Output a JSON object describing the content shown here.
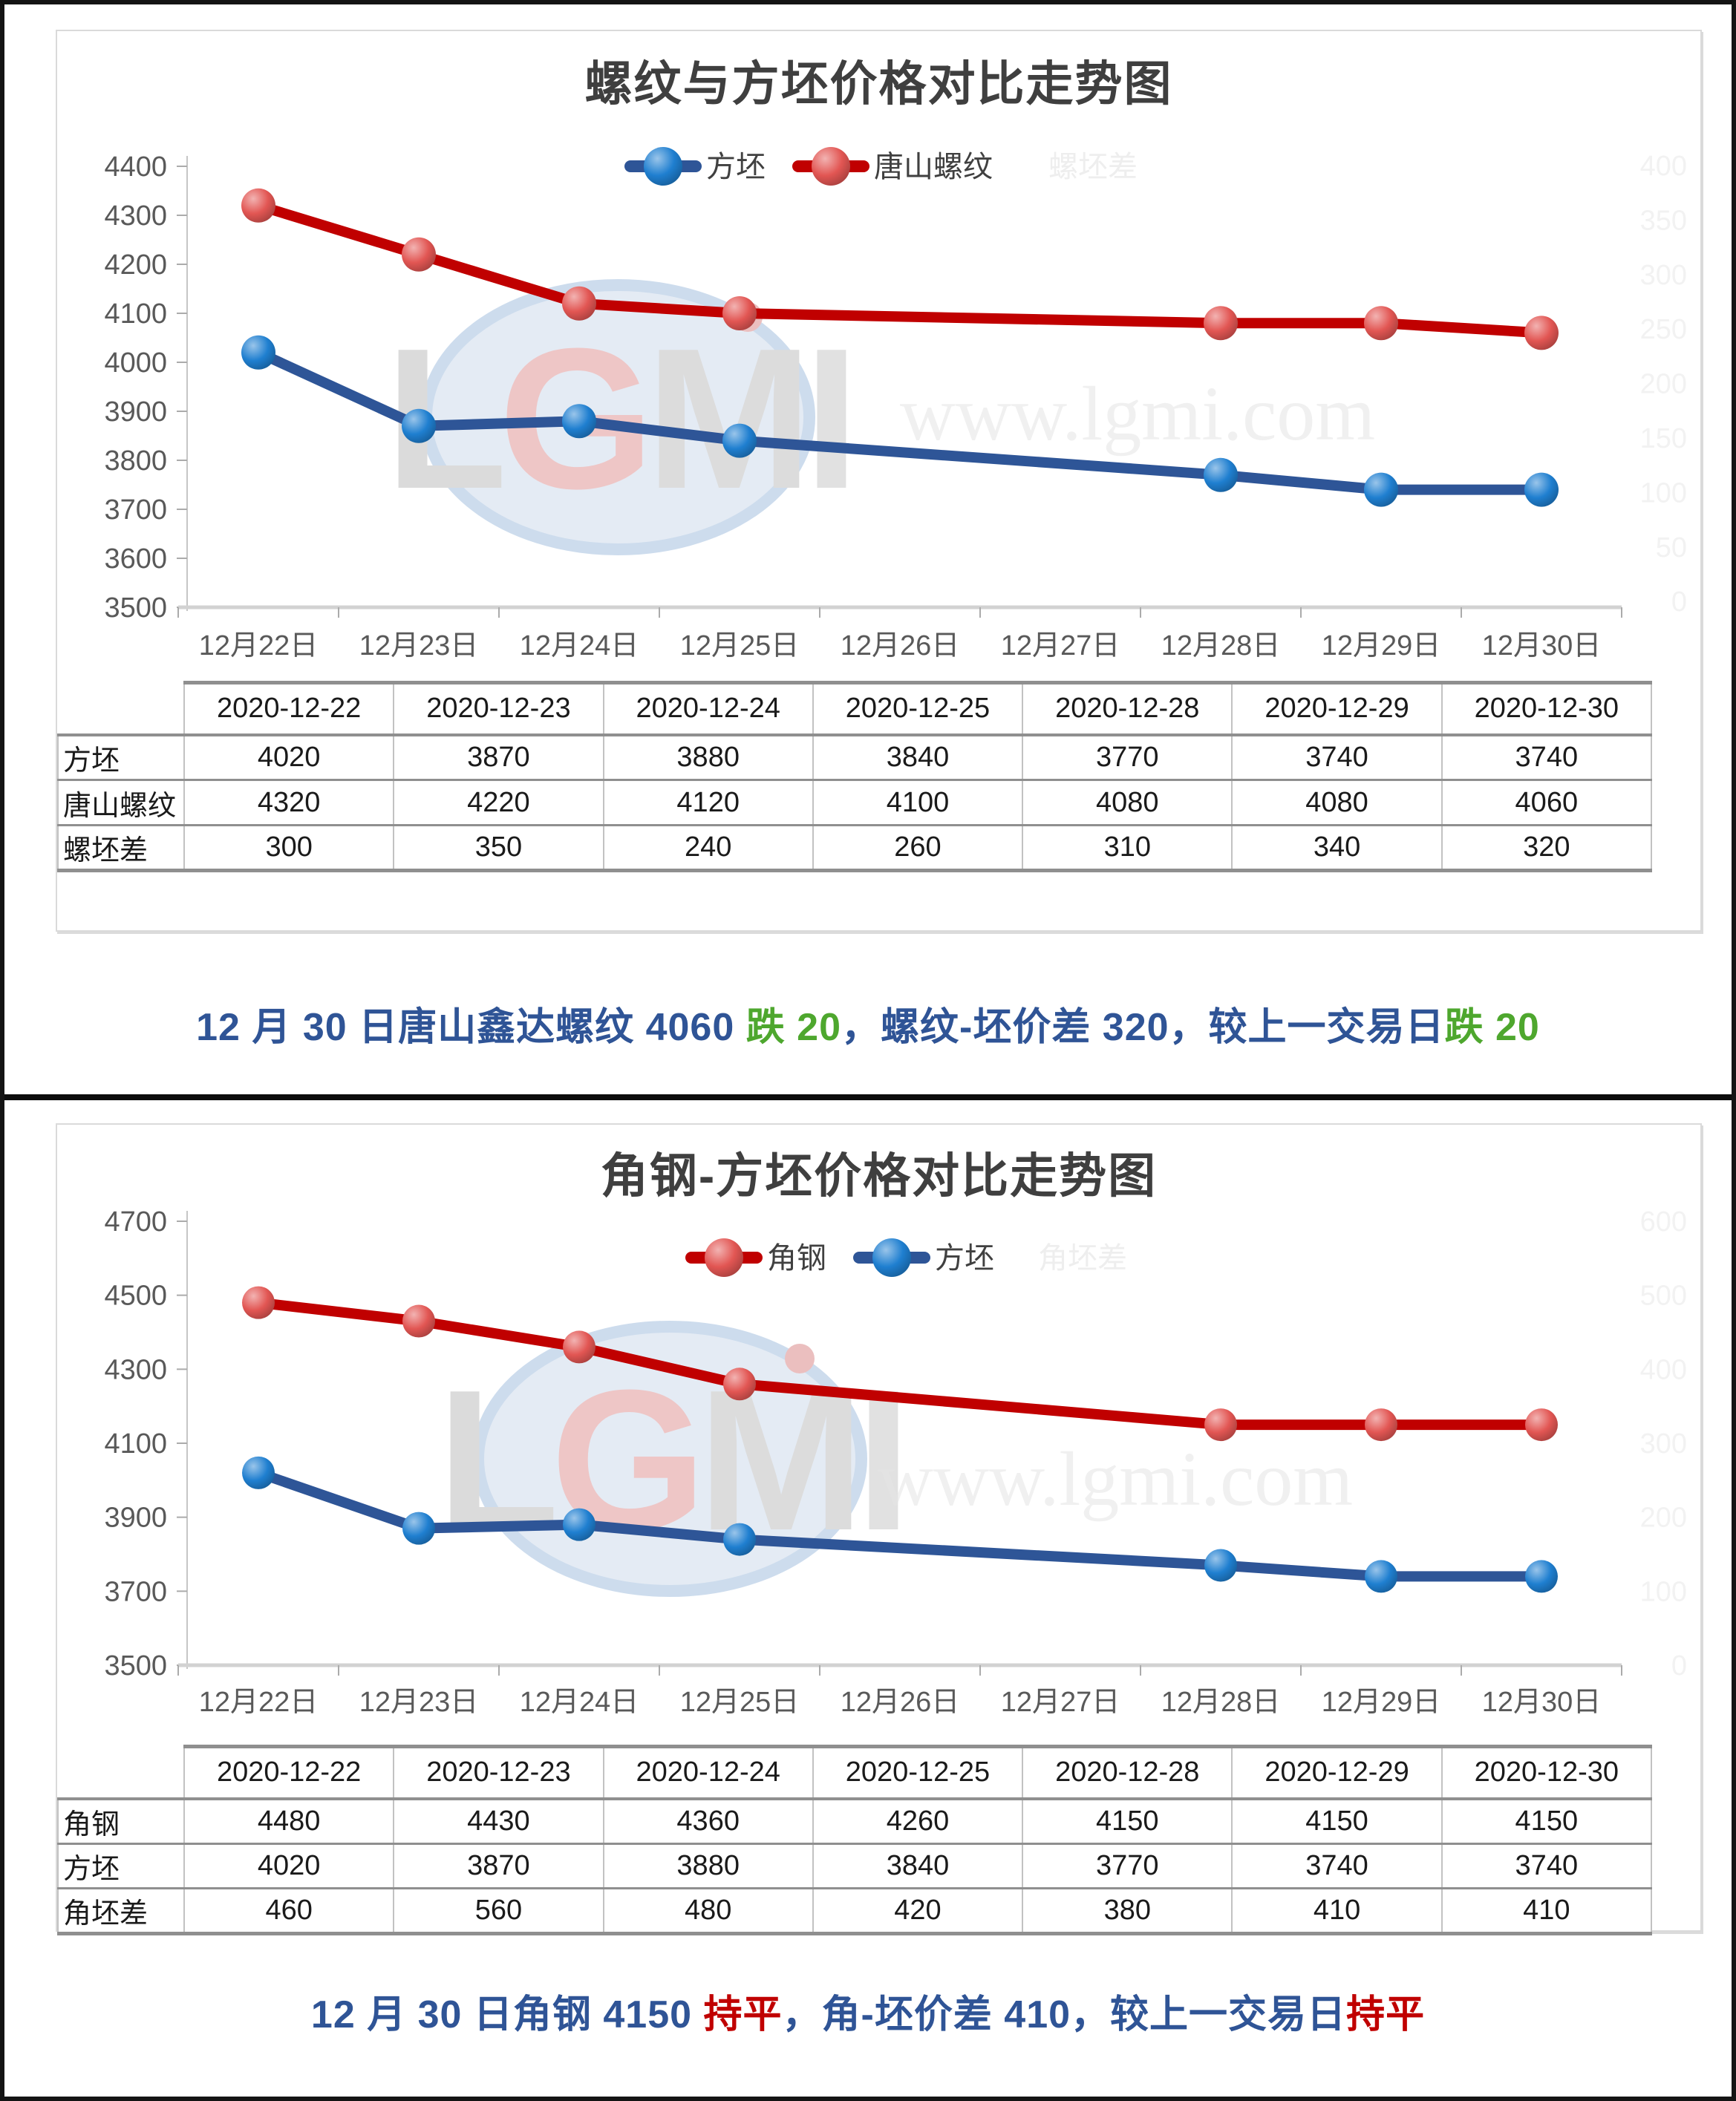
{
  "page": {
    "watermark_logo": "LGMI",
    "watermark_url": "www.lgmi.com"
  },
  "chart_data": [
    {
      "type": "line",
      "title": "螺纹与方坯价格对比走势图",
      "categories": [
        "12月22日",
        "12月23日",
        "12月24日",
        "12月25日",
        "12月26日",
        "12月27日",
        "12月28日",
        "12月29日",
        "12月30日"
      ],
      "data_category_indices": [
        0,
        1,
        2,
        3,
        6,
        7,
        8
      ],
      "series": [
        {
          "name": "方坯",
          "color": "#2E5597",
          "marker_color": "#1F7FD0",
          "values": [
            4020,
            3870,
            3880,
            3840,
            3770,
            3740,
            3740
          ]
        },
        {
          "name": "唐山螺纹",
          "color": "#C00000",
          "marker_color": "#E25653",
          "values": [
            4320,
            4220,
            4120,
            4100,
            4080,
            4080,
            4060
          ]
        }
      ],
      "ylim": [
        3500,
        4400
      ],
      "ytick_step": 100,
      "yticks": [
        "4400",
        "4300",
        "4200",
        "4100",
        "4000",
        "3900",
        "3800",
        "3700",
        "3600",
        "3500"
      ],
      "grid": false,
      "legend_position": "top-center",
      "ghost_legend": "螺坯差",
      "ghost_axis_labels": [
        "400",
        "350",
        "300",
        "250",
        "200",
        "150",
        "100",
        "50",
        "0"
      ],
      "table": {
        "col_headers": [
          "2020-12-22",
          "2020-12-23",
          "2020-12-24",
          "2020-12-25",
          "2020-12-28",
          "2020-12-29",
          "2020-12-30"
        ],
        "rows": [
          {
            "label": "方坯",
            "values": [
              "4020",
              "3870",
              "3880",
              "3840",
              "3770",
              "3740",
              "3740"
            ]
          },
          {
            "label": "唐山螺纹",
            "values": [
              "4320",
              "4220",
              "4120",
              "4100",
              "4080",
              "4080",
              "4060"
            ]
          },
          {
            "label": "螺坯差",
            "values": [
              "300",
              "350",
              "240",
              "260",
              "310",
              "340",
              "320"
            ]
          }
        ]
      },
      "summary": [
        {
          "text": "12 月 30 日唐山鑫达螺纹 4060 ",
          "color": "#2F5496"
        },
        {
          "text": "跌 20",
          "color": "#4EA72E"
        },
        {
          "text": "，螺纹-坯价差 320，较上一交易日",
          "color": "#2F5496"
        },
        {
          "text": "跌 20",
          "color": "#4EA72E"
        }
      ]
    },
    {
      "type": "line",
      "title": "角钢-方坯价格对比走势图",
      "categories": [
        "12月22日",
        "12月23日",
        "12月24日",
        "12月25日",
        "12月26日",
        "12月27日",
        "12月28日",
        "12月29日",
        "12月30日"
      ],
      "data_category_indices": [
        0,
        1,
        2,
        3,
        6,
        7,
        8
      ],
      "series": [
        {
          "name": "角钢",
          "color": "#C00000",
          "marker_color": "#E25653",
          "values": [
            4480,
            4430,
            4360,
            4260,
            4150,
            4150,
            4150
          ]
        },
        {
          "name": "方坯",
          "color": "#2E5597",
          "marker_color": "#1F7FD0",
          "values": [
            4020,
            3870,
            3880,
            3840,
            3770,
            3740,
            3740
          ]
        }
      ],
      "ylim": [
        3500,
        4700
      ],
      "ytick_step": 200,
      "yticks": [
        "4700",
        "4500",
        "4300",
        "4100",
        "3900",
        "3700",
        "3500"
      ],
      "grid": false,
      "legend_position": "top-center",
      "ghost_legend": "角坯差",
      "ghost_axis_labels": [
        "600",
        "500",
        "400",
        "300",
        "200",
        "100",
        "0"
      ],
      "table": {
        "col_headers": [
          "2020-12-22",
          "2020-12-23",
          "2020-12-24",
          "2020-12-25",
          "2020-12-28",
          "2020-12-29",
          "2020-12-30"
        ],
        "rows": [
          {
            "label": "角钢",
            "values": [
              "4480",
              "4430",
              "4360",
              "4260",
              "4150",
              "4150",
              "4150"
            ]
          },
          {
            "label": "方坯",
            "values": [
              "4020",
              "3870",
              "3880",
              "3840",
              "3770",
              "3740",
              "3740"
            ]
          },
          {
            "label": "角坯差",
            "values": [
              "460",
              "560",
              "480",
              "420",
              "380",
              "410",
              "410"
            ]
          }
        ]
      },
      "summary": [
        {
          "text": "12 月 30 日角钢 4150 ",
          "color": "#2F5496"
        },
        {
          "text": "持平",
          "color": "#C00000"
        },
        {
          "text": "，角-坯价差 410，较上一交易日",
          "color": "#2F5496"
        },
        {
          "text": "持平",
          "color": "#C00000"
        }
      ]
    }
  ]
}
